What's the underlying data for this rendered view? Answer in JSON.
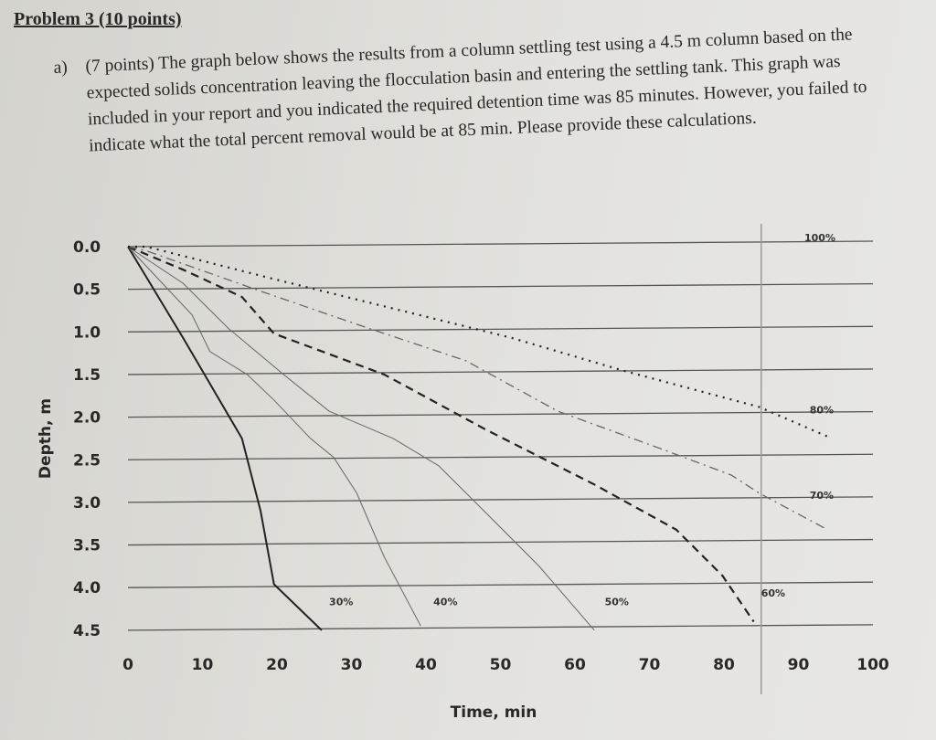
{
  "problem": {
    "title": "Problem 3 (10 points)",
    "part_label": "a)",
    "text": "(7 points) The graph below shows the results from a column settling test using a 4.5 m column based on the expected solids concentration leaving the flocculation basin and entering the settling tank. This graph was included in your report and you indicated the required detention time was 85 minutes. However, you failed to indicate what the total percent removal would be at 85 min. Please provide these calculations."
  },
  "chart_data": {
    "type": "line",
    "title": "",
    "xlabel": "Time, min",
    "ylabel": "Depth, m",
    "xlim": [
      0,
      100
    ],
    "ylim": [
      4.5,
      0
    ],
    "y_inverted": true,
    "grid": "horizontal",
    "x_ticks": [
      "0",
      "10",
      "20",
      "30",
      "40",
      "50",
      "60",
      "70",
      "80",
      "90",
      "100"
    ],
    "y_ticks": [
      "0.0",
      "0.5",
      "1.0",
      "1.5",
      "2.0",
      "2.5",
      "3.0",
      "3.5",
      "4.0",
      "4.5"
    ],
    "vertical_marker_time": 85,
    "series": [
      {
        "name": "30%",
        "style": "solid-thick",
        "points": [
          [
            0,
            0
          ],
          [
            7.4,
            1.07
          ],
          [
            15.3,
            2.25
          ],
          [
            17.8,
            3.1
          ],
          [
            19.6,
            3.96
          ],
          [
            26,
            4.5
          ]
        ],
        "label_at": [
          27,
          4.1
        ]
      },
      {
        "name": "40%",
        "style": "solid-thin",
        "points": [
          [
            0,
            0
          ],
          [
            8.6,
            0.8
          ],
          [
            11,
            1.23
          ],
          [
            16,
            1.5
          ],
          [
            19.6,
            1.8
          ],
          [
            24.5,
            2.25
          ],
          [
            27.6,
            2.47
          ],
          [
            30.7,
            2.89
          ],
          [
            34.4,
            3.64
          ],
          [
            39.3,
            4.45
          ]
        ],
        "label_at": [
          41,
          4.1
        ]
      },
      {
        "name": "50%",
        "style": "solid-thin",
        "points": [
          [
            0,
            0
          ],
          [
            7.4,
            0.43
          ],
          [
            13.5,
            0.96
          ],
          [
            20.9,
            1.5
          ],
          [
            27,
            1.93
          ],
          [
            35.6,
            2.25
          ],
          [
            41.7,
            2.57
          ],
          [
            47.9,
            3.11
          ],
          [
            55.2,
            3.75
          ],
          [
            62.6,
            4.5
          ]
        ],
        "label_at": [
          64,
          4.1
        ]
      },
      {
        "name": "60%",
        "style": "dashed",
        "points": [
          [
            0,
            0
          ],
          [
            7.4,
            0.27
          ],
          [
            15.3,
            0.59
          ],
          [
            19.6,
            1.02
          ],
          [
            34.4,
            1.5
          ],
          [
            47.9,
            2.14
          ],
          [
            62.6,
            2.79
          ],
          [
            73.6,
            3.32
          ],
          [
            79.8,
            3.86
          ],
          [
            84,
            4.4
          ]
        ],
        "label_at": [
          85,
          4.0
        ]
      },
      {
        "name": "70%",
        "style": "dash-dot",
        "points": [
          [
            0,
            0
          ],
          [
            2.5,
            0.05
          ],
          [
            18.4,
            0.54
          ],
          [
            30.7,
            0.91
          ],
          [
            45.4,
            1.34
          ],
          [
            57.7,
            1.93
          ],
          [
            71.2,
            2.36
          ],
          [
            81,
            2.68
          ],
          [
            84.7,
            2.89
          ],
          [
            93.9,
            3.32
          ]
        ],
        "label_at": [
          91.5,
          2.85
        ]
      },
      {
        "name": "80%",
        "style": "dotted",
        "points": [
          [
            0,
            0
          ],
          [
            2.5,
            0
          ],
          [
            19.6,
            0.38
          ],
          [
            34.4,
            0.7
          ],
          [
            51.5,
            1.07
          ],
          [
            66.3,
            1.45
          ],
          [
            84.7,
            1.88
          ],
          [
            94.5,
            2.25
          ]
        ],
        "label_at": [
          91.5,
          1.85
        ]
      }
    ],
    "annotations": [
      "100%"
    ]
  }
}
